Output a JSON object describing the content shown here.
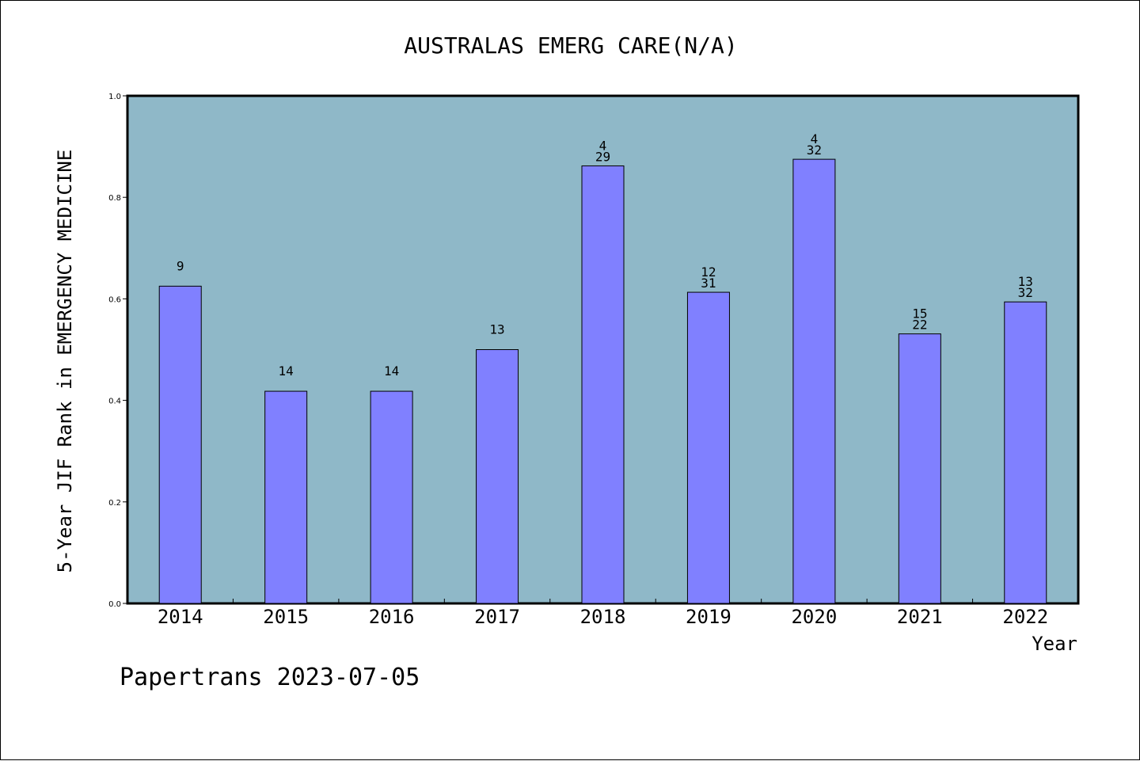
{
  "chart_data": {
    "type": "bar",
    "title": "AUSTRALAS EMERG CARE(N/A)",
    "xlabel": "Year",
    "ylabel": "5-Year JIF Rank in EMERGENCY MEDICINE",
    "categories": [
      "2014",
      "2015",
      "2016",
      "2017",
      "2018",
      "2019",
      "2020",
      "2021",
      "2022"
    ],
    "values": [
      0.625,
      0.418,
      0.418,
      0.5,
      0.862,
      0.613,
      0.875,
      0.531,
      0.594
    ],
    "bar_labels": [
      [
        "9"
      ],
      [
        "14"
      ],
      [
        "14"
      ],
      [
        "13"
      ],
      [
        "4",
        "29"
      ],
      [
        "12",
        "31"
      ],
      [
        "4",
        "32"
      ],
      [
        "15",
        "22"
      ],
      [
        "13",
        "32"
      ]
    ],
    "ylim": [
      0,
      1.0
    ],
    "yticks": [
      "0.0",
      "0.2",
      "0.4",
      "0.6",
      "0.8",
      "1.0"
    ],
    "colors": {
      "plot_background": "#8fb8c8",
      "bar_fill": "#8080ff",
      "bar_stroke": "#000000"
    },
    "grid": false
  },
  "footer": "Papertrans 2023-07-05"
}
